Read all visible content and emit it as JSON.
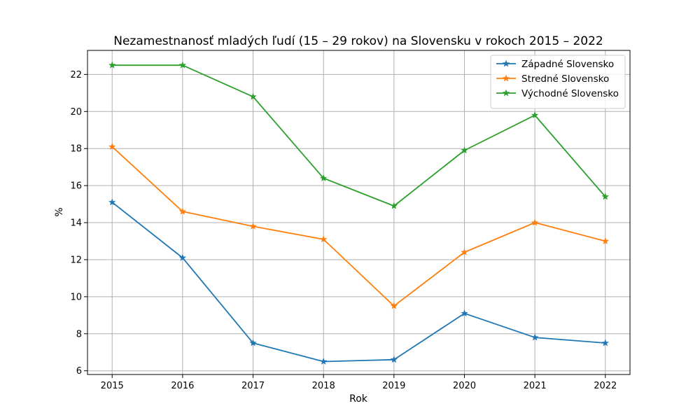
{
  "chart_data": {
    "type": "line",
    "title": "Nezamestnanosť mladých ľudí (15 – 29 rokov) na Slovensku v rokoch 2015 – 2022",
    "xlabel": "Rok",
    "ylabel": "%",
    "x": [
      "2015",
      "2016",
      "2017",
      "2018",
      "2019",
      "2020",
      "2021",
      "2022"
    ],
    "xlim": [
      2014.65,
      2022.35
    ],
    "ylim": [
      5.8,
      23.3
    ],
    "yticks": [
      6,
      8,
      10,
      12,
      14,
      16,
      18,
      20,
      22
    ],
    "grid": true,
    "legend_position": "top-right",
    "marker": "star",
    "series": [
      {
        "name": "Západné Slovensko",
        "color": "#1f77b4",
        "values": [
          15.1,
          12.1,
          7.5,
          6.5,
          6.6,
          9.1,
          7.8,
          7.5
        ]
      },
      {
        "name": "Stredné Slovensko",
        "color": "#ff7f0e",
        "values": [
          18.1,
          14.6,
          13.8,
          13.1,
          9.5,
          12.4,
          14.0,
          13.0
        ]
      },
      {
        "name": "Východné Slovensko",
        "color": "#2ca02c",
        "values": [
          22.5,
          22.5,
          20.8,
          16.4,
          14.9,
          17.9,
          19.8,
          15.4
        ]
      }
    ]
  }
}
